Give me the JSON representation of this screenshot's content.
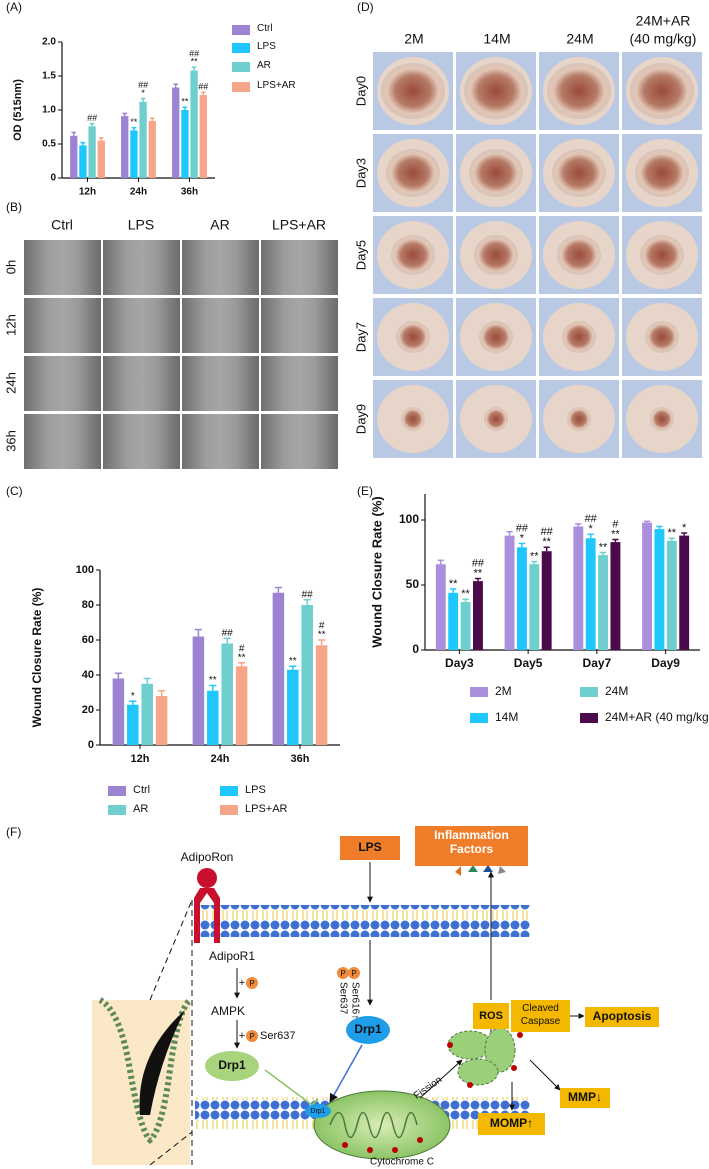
{
  "panel_labels": [
    "(A)",
    "(B)",
    "(C)",
    "(D)",
    "(E)",
    "(F)"
  ],
  "chart_data": [
    {
      "type": "bar",
      "ylabel": "OD (515nm)",
      "categories": [
        "12h",
        "24h",
        "36h"
      ],
      "ylim": [
        0,
        2
      ],
      "yticks": [
        0,
        0.5,
        {
          "value": 1,
          "label": "1.0"
        },
        1.5,
        {
          "value": 2,
          "label": "2.0"
        }
      ],
      "series": [
        {
          "name": "Ctrl",
          "color": "#9d84d2",
          "values": [
            0.62,
            0.91,
            1.33
          ],
          "errors": [
            0.05,
            0.04,
            0.05
          ],
          "significance": [
            null,
            null,
            null
          ]
        },
        {
          "name": "LPS",
          "color": "#1ec8ff",
          "values": [
            0.48,
            0.7,
            1.0
          ],
          "errors": [
            0.04,
            0.04,
            0.04
          ],
          "significance": [
            null,
            [
              "**"
            ],
            [
              "**"
            ]
          ]
        },
        {
          "name": "AR",
          "color": "#6fcfcf",
          "values": [
            0.76,
            1.12,
            1.58
          ],
          "errors": [
            0.04,
            0.05,
            0.05
          ],
          "significance": [
            [
              "##"
            ],
            [
              "##",
              "*"
            ],
            [
              "##",
              "**"
            ]
          ]
        },
        {
          "name": "LPS+AR",
          "color": "#f7a589",
          "values": [
            0.55,
            0.84,
            1.22
          ],
          "errors": [
            0.04,
            0.04,
            0.04
          ],
          "significance": [
            null,
            null,
            [
              "##"
            ]
          ]
        }
      ]
    },
    {
      "type": "bar",
      "ylabel": "Wound Closure Rate (%)",
      "categories": [
        "12h",
        "24h",
        "36h"
      ],
      "ylim": [
        0,
        100
      ],
      "yticks": [
        0,
        20,
        40,
        60,
        80,
        100
      ],
      "series": [
        {
          "name": "Ctrl",
          "color": "#9d84d2",
          "values": [
            38,
            62,
            87
          ],
          "errors": [
            3,
            4,
            3
          ],
          "significance": [
            null,
            null,
            null
          ]
        },
        {
          "name": "LPS",
          "color": "#1ec8ff",
          "values": [
            23,
            31,
            43
          ],
          "errors": [
            2,
            3,
            2
          ],
          "significance": [
            [
              "*"
            ],
            [
              "**"
            ],
            [
              "**"
            ]
          ]
        },
        {
          "name": "AR",
          "color": "#6fcfcf",
          "values": [
            35,
            58,
            80
          ],
          "errors": [
            3,
            3,
            3
          ],
          "significance": [
            null,
            [
              "##"
            ],
            [
              "##"
            ]
          ]
        },
        {
          "name": "LPS+AR",
          "color": "#f7a589",
          "values": [
            28,
            45,
            57
          ],
          "errors": [
            3,
            2,
            3
          ],
          "significance": [
            null,
            [
              "#",
              "**"
            ],
            [
              "#",
              "**"
            ]
          ]
        }
      ]
    },
    {
      "type": "bar",
      "ylabel": "Wound Closure Rate (%)",
      "categories": [
        "Day3",
        "Day5",
        "Day7",
        "Day9"
      ],
      "ylim": [
        0,
        120
      ],
      "yticks": [
        0,
        50,
        100
      ],
      "series": [
        {
          "name": "2M",
          "color": "#a98fdc",
          "values": [
            66,
            88,
            95,
            98
          ],
          "errors": [
            3,
            3,
            2,
            1
          ],
          "significance": [
            null,
            null,
            null,
            null
          ]
        },
        {
          "name": "14M",
          "color": "#1ec8ff",
          "values": [
            44,
            79,
            86,
            93
          ],
          "errors": [
            3,
            3,
            3,
            2
          ],
          "significance": [
            [
              "**"
            ],
            [
              "##",
              "*"
            ],
            [
              "##",
              "*"
            ],
            null
          ]
        },
        {
          "name": "24M",
          "color": "#6fcfcf",
          "values": [
            37,
            66,
            73,
            84
          ],
          "errors": [
            2,
            2,
            2,
            2
          ],
          "significance": [
            [
              "**"
            ],
            [
              "**"
            ],
            [
              "**"
            ],
            [
              "**"
            ]
          ]
        },
        {
          "name": "24M+AR (40 mg/kg)",
          "color": "#4b0a4b",
          "values": [
            53,
            76,
            83,
            88
          ],
          "errors": [
            2,
            3,
            2,
            2
          ],
          "significance": [
            [
              "##",
              "**"
            ],
            [
              "##",
              "**"
            ],
            [
              "#",
              "**"
            ],
            [
              "*"
            ]
          ]
        }
      ]
    }
  ],
  "panel_b": {
    "columns": [
      "Ctrl",
      "LPS",
      "AR",
      "LPS+AR"
    ],
    "rows": [
      "0h",
      "12h",
      "24h",
      "36h"
    ]
  },
  "panel_d": {
    "columns": [
      [
        "2M"
      ],
      [
        "14M"
      ],
      [
        "24M"
      ],
      [
        "24M+AR",
        "(40 mg/kg)"
      ]
    ],
    "rows": [
      "Day0",
      "Day3",
      "Day5",
      "Day7",
      "Day9"
    ]
  },
  "panel_f": {
    "lps": "LPS",
    "inflammation": "Inflammation Factors",
    "adiporon": "AdipoRon",
    "adipor1": "AdipoR1",
    "p": "P",
    "plus": "+",
    "ampk": "AMPK",
    "ser637": "Ser637",
    "ser616": "Ser616↑",
    "drp1": "Drp1",
    "fission": "Fission",
    "cytochrome": "Cytochrome C",
    "ros": "ROS",
    "cleaved": "Cleaved Caspase",
    "apoptosis": "Apoptosis",
    "mmp": "MMP↓",
    "momp": "MOMP↑"
  }
}
